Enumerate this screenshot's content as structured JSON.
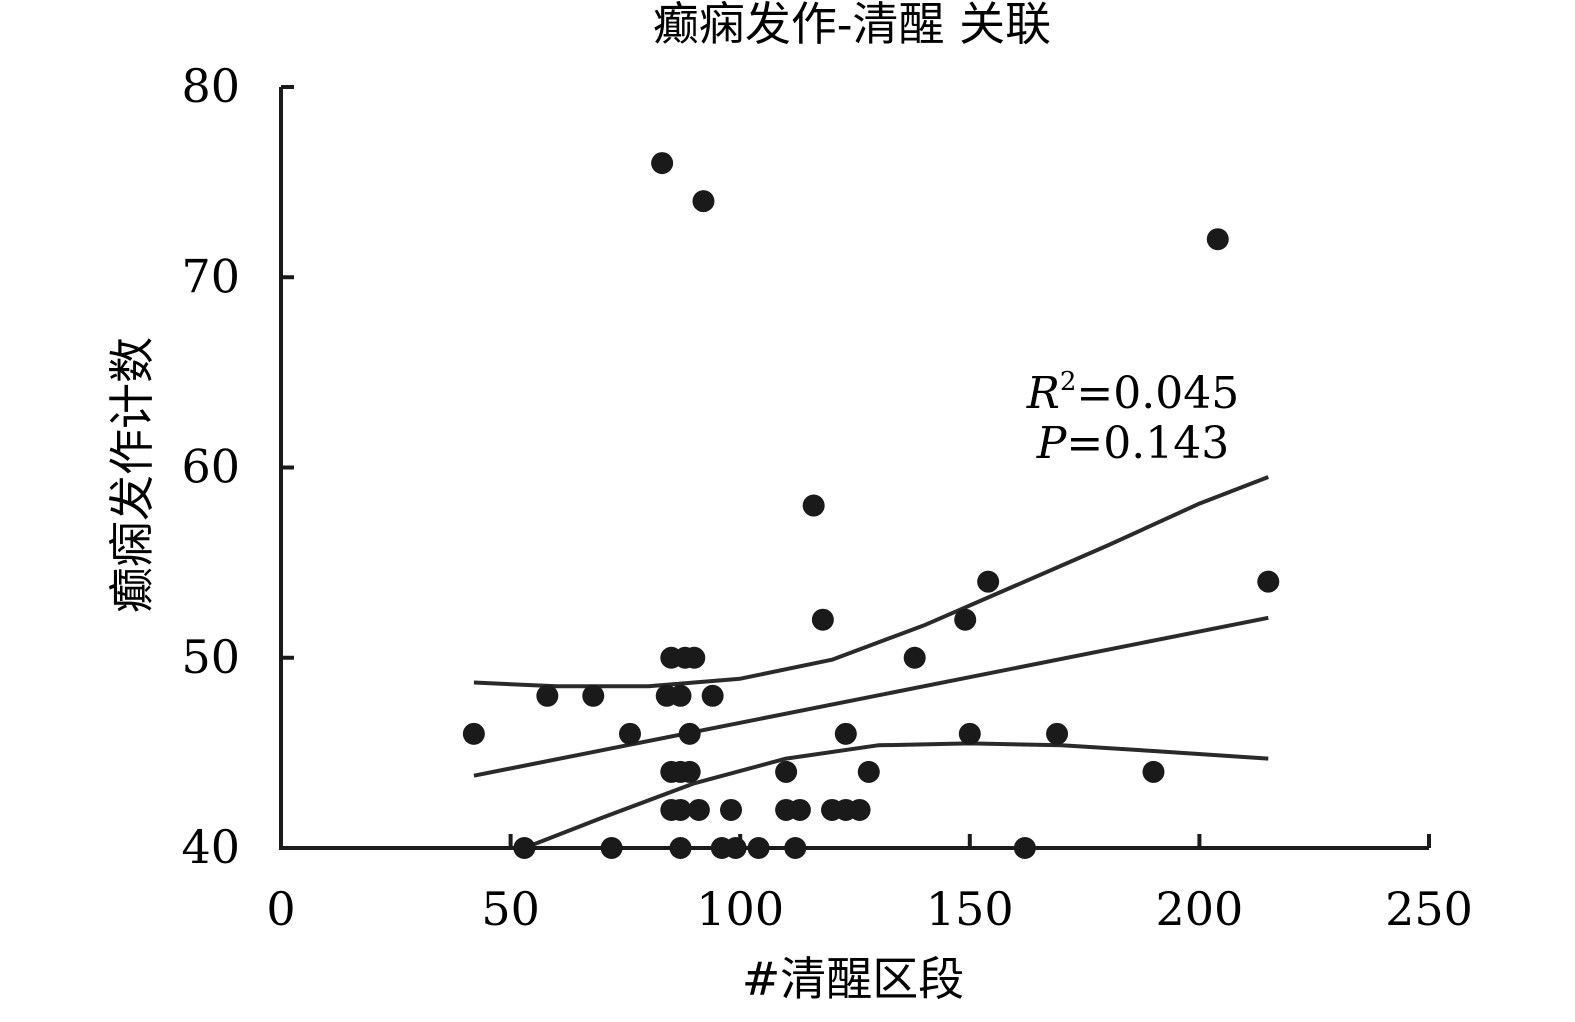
{
  "chart_data": {
    "type": "scatter",
    "title": "癫痫发作-清醒 关联",
    "xlabel": "#清醒区段",
    "ylabel": "癫痫发作计数",
    "xlim": [
      0,
      250
    ],
    "ylim": [
      40,
      80
    ],
    "x_ticks": [
      "0",
      "50",
      "100",
      "150",
      "200",
      "250"
    ],
    "y_ticks": [
      "40",
      "50",
      "60",
      "70",
      "80"
    ],
    "grid": false,
    "legend": "none",
    "marker_color": "#1a1a1a",
    "line_color": "#2a2a2a",
    "points": [
      {
        "x": 42,
        "y": 46
      },
      {
        "x": 53,
        "y": 40
      },
      {
        "x": 58,
        "y": 48
      },
      {
        "x": 68,
        "y": 48
      },
      {
        "x": 72,
        "y": 40
      },
      {
        "x": 76,
        "y": 46
      },
      {
        "x": 83,
        "y": 76
      },
      {
        "x": 84,
        "y": 48
      },
      {
        "x": 85,
        "y": 50
      },
      {
        "x": 85,
        "y": 44
      },
      {
        "x": 85,
        "y": 42
      },
      {
        "x": 87,
        "y": 48
      },
      {
        "x": 87,
        "y": 44
      },
      {
        "x": 87,
        "y": 42
      },
      {
        "x": 87,
        "y": 40
      },
      {
        "x": 88,
        "y": 50
      },
      {
        "x": 89,
        "y": 46
      },
      {
        "x": 89,
        "y": 44
      },
      {
        "x": 90,
        "y": 50
      },
      {
        "x": 91,
        "y": 42
      },
      {
        "x": 92,
        "y": 74
      },
      {
        "x": 94,
        "y": 48
      },
      {
        "x": 96,
        "y": 40
      },
      {
        "x": 98,
        "y": 42
      },
      {
        "x": 99,
        "y": 40
      },
      {
        "x": 104,
        "y": 40
      },
      {
        "x": 110,
        "y": 44
      },
      {
        "x": 110,
        "y": 42
      },
      {
        "x": 112,
        "y": 40
      },
      {
        "x": 113,
        "y": 42
      },
      {
        "x": 116,
        "y": 58
      },
      {
        "x": 118,
        "y": 52
      },
      {
        "x": 120,
        "y": 42
      },
      {
        "x": 123,
        "y": 46
      },
      {
        "x": 123,
        "y": 42
      },
      {
        "x": 126,
        "y": 42
      },
      {
        "x": 128,
        "y": 44
      },
      {
        "x": 138,
        "y": 50
      },
      {
        "x": 149,
        "y": 52
      },
      {
        "x": 150,
        "y": 46
      },
      {
        "x": 154,
        "y": 54
      },
      {
        "x": 162,
        "y": 40
      },
      {
        "x": 169,
        "y": 46
      },
      {
        "x": 190,
        "y": 44
      },
      {
        "x": 204,
        "y": 72
      },
      {
        "x": 215,
        "y": 54
      }
    ],
    "fit_line": [
      {
        "x": 42,
        "y": 43.8
      },
      {
        "x": 215,
        "y": 52.1
      }
    ],
    "ci_upper": [
      {
        "x": 42,
        "y": 48.7
      },
      {
        "x": 60,
        "y": 48.5
      },
      {
        "x": 80,
        "y": 48.5
      },
      {
        "x": 100,
        "y": 48.9
      },
      {
        "x": 120,
        "y": 49.9
      },
      {
        "x": 140,
        "y": 51.7
      },
      {
        "x": 160,
        "y": 53.8
      },
      {
        "x": 180,
        "y": 55.9
      },
      {
        "x": 200,
        "y": 58.1
      },
      {
        "x": 215,
        "y": 59.5
      }
    ],
    "ci_lower": [
      {
        "x": 53,
        "y": 40.0
      },
      {
        "x": 70,
        "y": 41.6
      },
      {
        "x": 90,
        "y": 43.4
      },
      {
        "x": 110,
        "y": 44.7
      },
      {
        "x": 130,
        "y": 45.4
      },
      {
        "x": 150,
        "y": 45.5
      },
      {
        "x": 170,
        "y": 45.4
      },
      {
        "x": 190,
        "y": 45.1
      },
      {
        "x": 215,
        "y": 44.7
      }
    ],
    "annotations": {
      "r2_symbol": "R",
      "r2_superscript": "2",
      "r2_value": "=0.045",
      "p_symbol": "P",
      "p_value": "=0.143"
    }
  }
}
